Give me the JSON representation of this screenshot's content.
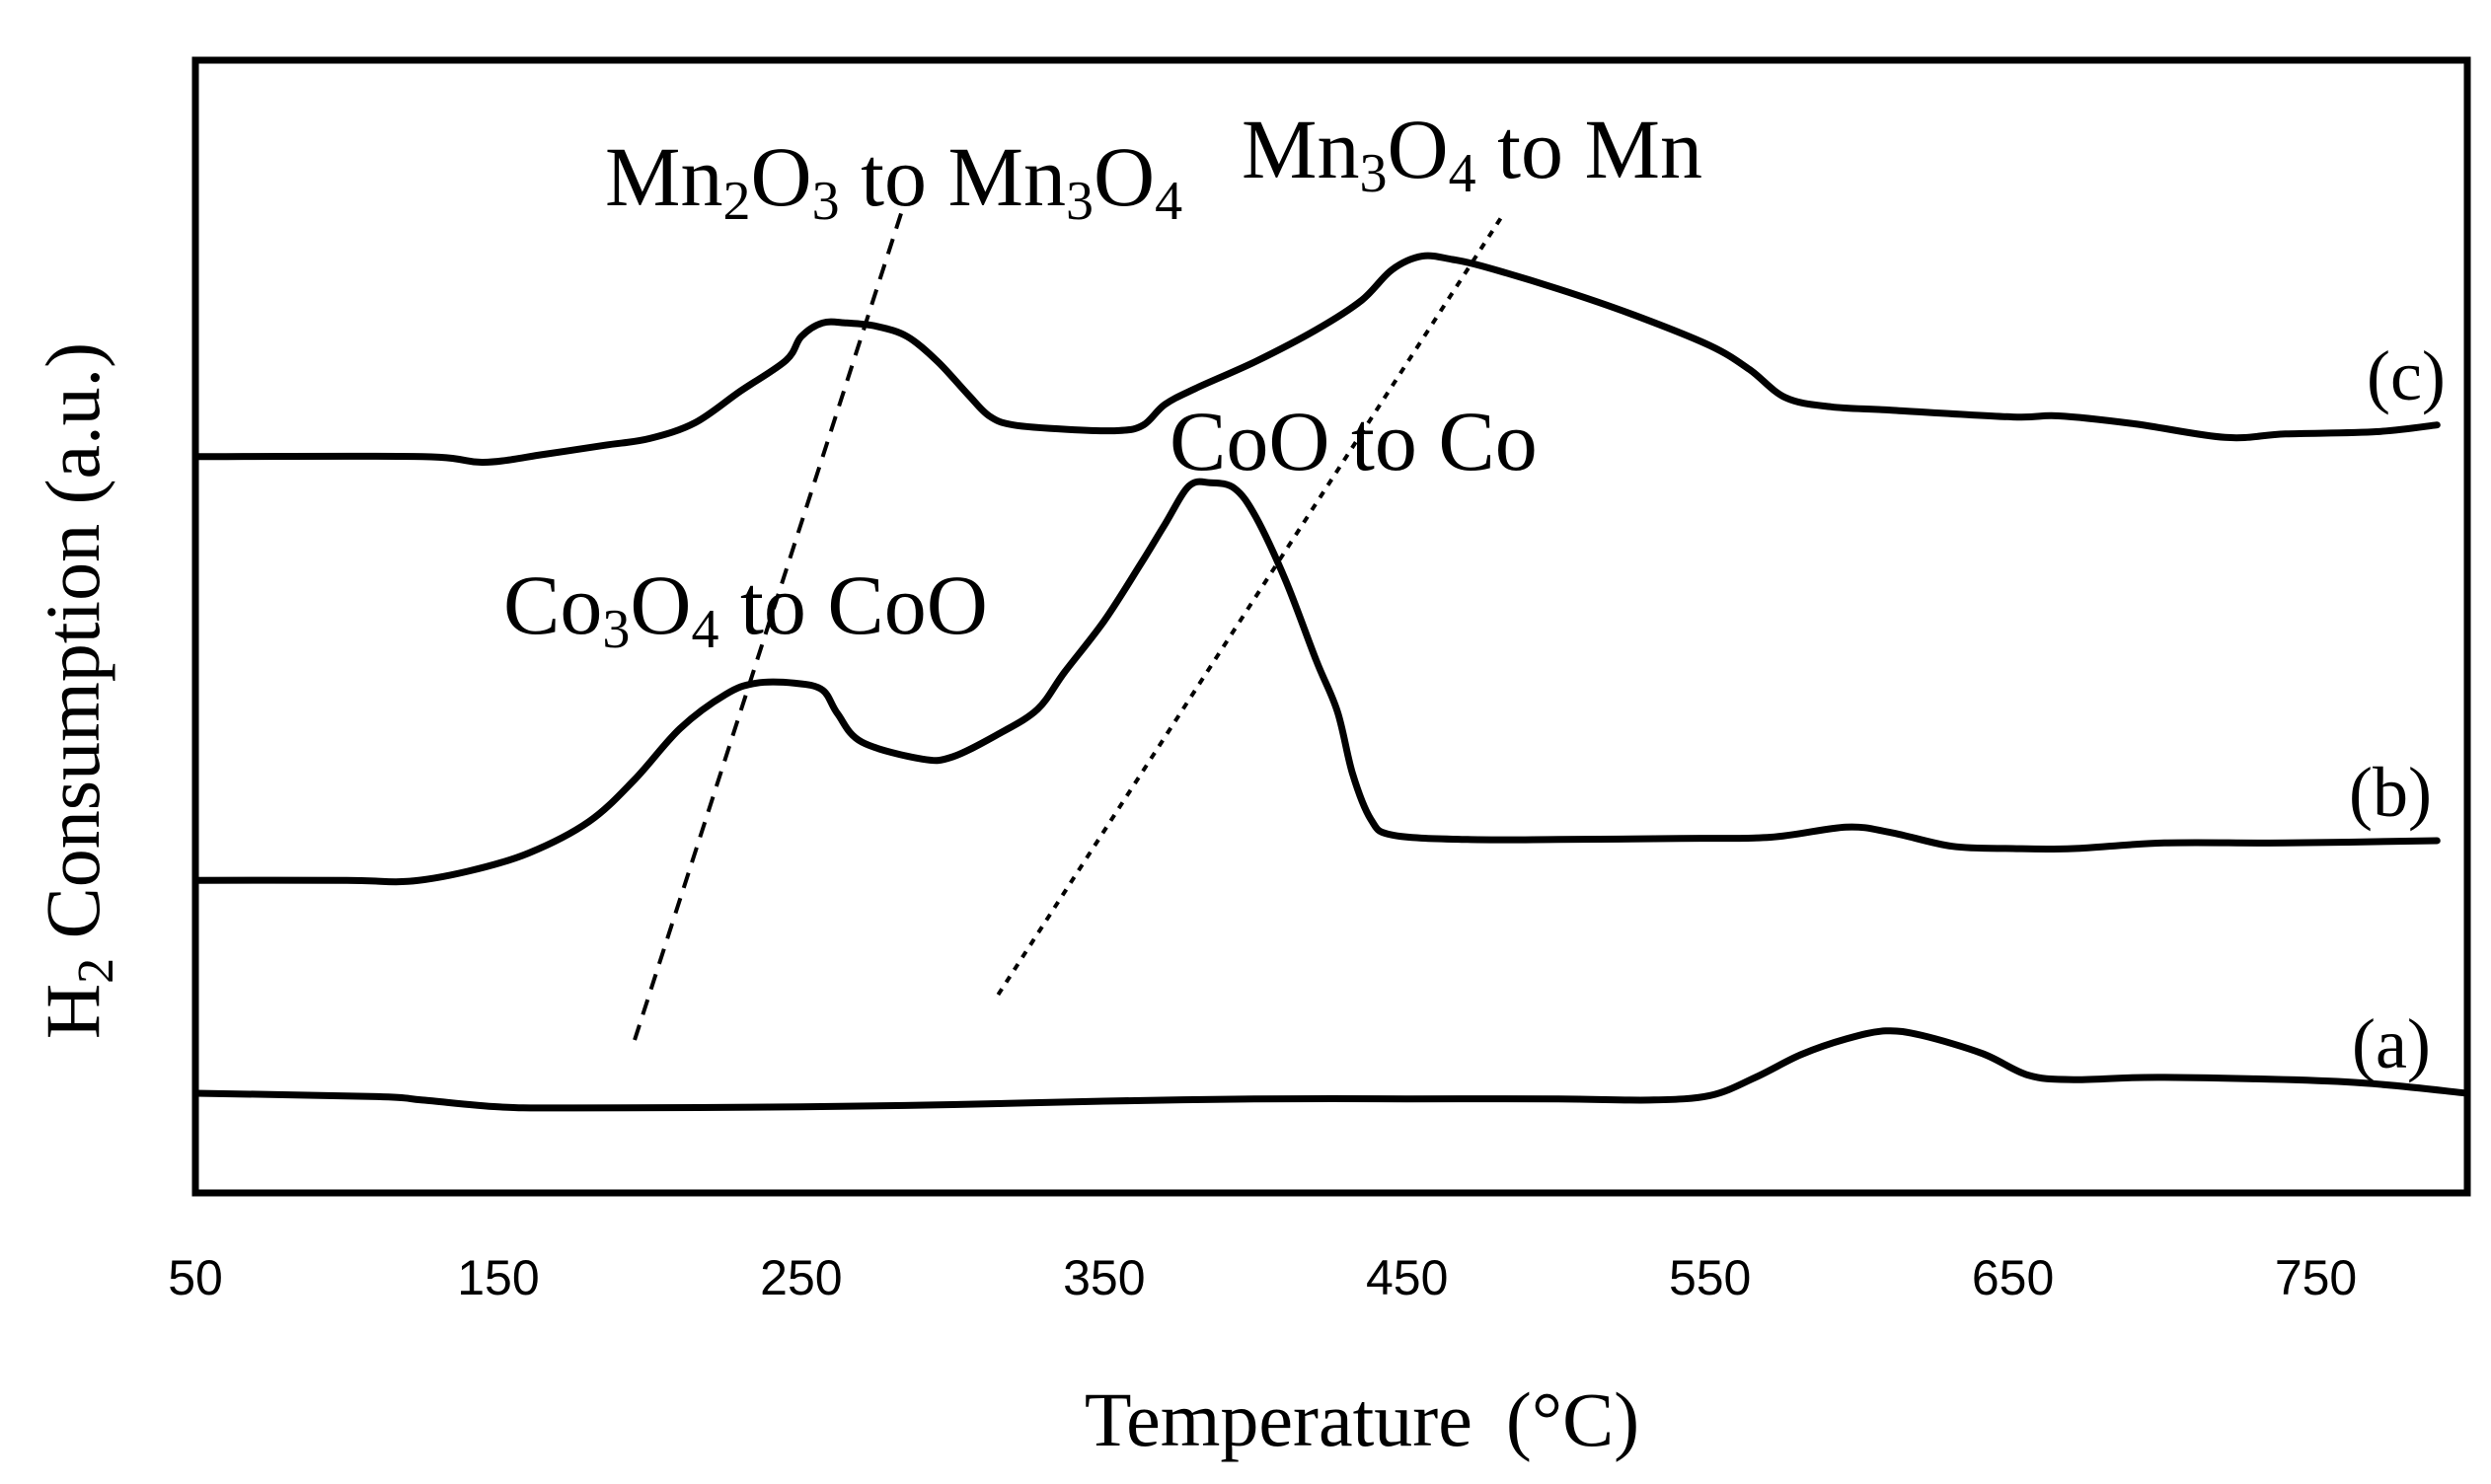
{
  "chart_data": {
    "type": "line",
    "title": "",
    "xlabel": "Temperature (°C)",
    "ylabel": "H2 Consumption (a.u.)",
    "ylabel_parts": {
      "pre": "H",
      "sub": "2",
      "post": " Consumption  (a.u.)"
    },
    "xlabel_parts": {
      "text": "Temperature",
      "unit": "(°C)"
    },
    "xlim": [
      50,
      800
    ],
    "ylim": [
      0,
      100
    ],
    "y_ticks_shown": false,
    "grid": false,
    "legend": "none",
    "x_ticks": [
      50,
      150,
      250,
      350,
      450,
      550,
      650,
      750
    ],
    "x_tick_labels": [
      "50",
      "150",
      "250",
      "350",
      "450",
      "550",
      "650",
      "750"
    ],
    "series": [
      {
        "name": "(a)",
        "label": "(a)",
        "points": [
          [
            50,
            8.8
          ],
          [
            110,
            8.5
          ],
          [
            125,
            8.2
          ],
          [
            150,
            7.6
          ],
          [
            175,
            7.5
          ],
          [
            250,
            7.6
          ],
          [
            300,
            7.8
          ],
          [
            350,
            8.1
          ],
          [
            400,
            8.3
          ],
          [
            450,
            8.3
          ],
          [
            500,
            8.3
          ],
          [
            530,
            8.2
          ],
          [
            550,
            8.6
          ],
          [
            565,
            10.2
          ],
          [
            580,
            12.2
          ],
          [
            595,
            13.6
          ],
          [
            608,
            14.3
          ],
          [
            620,
            13.9
          ],
          [
            640,
            12.3
          ],
          [
            655,
            10.4
          ],
          [
            670,
            10
          ],
          [
            700,
            10.2
          ],
          [
            760,
            9.8
          ],
          [
            800,
            8.8
          ]
        ]
      },
      {
        "name": "(b)",
        "label": "(b)",
        "points": [
          [
            50,
            27.6
          ],
          [
            100,
            27.6
          ],
          [
            120,
            27.5
          ],
          [
            140,
            28.4
          ],
          [
            160,
            30
          ],
          [
            180,
            32.8
          ],
          [
            195,
            36.5
          ],
          [
            210,
            41
          ],
          [
            225,
            44
          ],
          [
            235,
            45
          ],
          [
            248,
            45
          ],
          [
            257,
            44.4
          ],
          [
            262,
            42.3
          ],
          [
            270,
            39.8
          ],
          [
            290,
            38.3
          ],
          [
            300,
            38.5
          ],
          [
            315,
            40.5
          ],
          [
            328,
            42.7
          ],
          [
            337,
            46
          ],
          [
            350,
            50.5
          ],
          [
            362,
            55.5
          ],
          [
            370,
            59
          ],
          [
            378,
            62.4
          ],
          [
            385,
            62.7
          ],
          [
            393,
            62.2
          ],
          [
            400,
            59.7
          ],
          [
            410,
            54
          ],
          [
            420,
            47
          ],
          [
            427,
            42.5
          ],
          [
            432,
            37
          ],
          [
            438,
            33
          ],
          [
            445,
            31.6
          ],
          [
            470,
            31.2
          ],
          [
            500,
            31.2
          ],
          [
            540,
            31.3
          ],
          [
            570,
            31.4
          ],
          [
            595,
            32.3
          ],
          [
            610,
            31.8
          ],
          [
            630,
            30.6
          ],
          [
            650,
            30.4
          ],
          [
            670,
            30.4
          ],
          [
            700,
            30.9
          ],
          [
            740,
            30.9
          ],
          [
            790,
            31.1
          ]
        ]
      },
      {
        "name": "(c)",
        "label": "(c)",
        "points": [
          [
            50,
            65
          ],
          [
            125,
            65
          ],
          [
            145,
            64.5
          ],
          [
            165,
            65.2
          ],
          [
            185,
            66
          ],
          [
            200,
            66.6
          ],
          [
            215,
            68
          ],
          [
            230,
            70.8
          ],
          [
            245,
            73.5
          ],
          [
            250,
            75.6
          ],
          [
            257,
            76.8
          ],
          [
            265,
            76.8
          ],
          [
            275,
            76.5
          ],
          [
            285,
            75.6
          ],
          [
            295,
            73.4
          ],
          [
            305,
            70.5
          ],
          [
            312,
            68.6
          ],
          [
            320,
            67.8
          ],
          [
            338,
            67.4
          ],
          [
            355,
            67.3
          ],
          [
            363,
            67.8
          ],
          [
            370,
            69.6
          ],
          [
            380,
            71
          ],
          [
            400,
            73.4
          ],
          [
            420,
            76.2
          ],
          [
            435,
            78.8
          ],
          [
            445,
            81.5
          ],
          [
            455,
            82.7
          ],
          [
            465,
            82.4
          ],
          [
            475,
            81.8
          ],
          [
            500,
            79.8
          ],
          [
            525,
            77.5
          ],
          [
            550,
            74.8
          ],
          [
            563,
            72.7
          ],
          [
            575,
            70.2
          ],
          [
            590,
            69.4
          ],
          [
            610,
            69.1
          ],
          [
            650,
            68.5
          ],
          [
            665,
            68.6
          ],
          [
            690,
            67.9
          ],
          [
            720,
            66.7
          ],
          [
            740,
            67
          ],
          [
            770,
            67.2
          ],
          [
            790,
            67.8
          ]
        ]
      }
    ],
    "annotations": [
      {
        "id": "mn2o3",
        "text": "Mn2O3 to Mn3O4",
        "parts": [
          "Mn",
          "2",
          "O",
          "3",
          " to Mn",
          "3",
          "O",
          "4"
        ]
      },
      {
        "id": "mn3o4",
        "text": "Mn3O4 to Mn",
        "parts": [
          "Mn",
          "3",
          "O",
          "4",
          " to Mn"
        ]
      },
      {
        "id": "co3o4",
        "text": "Co3O4 to CoO",
        "parts": [
          "Co",
          "3",
          "O",
          "4",
          " to CoO"
        ]
      },
      {
        "id": "coo",
        "text": "CoO to Co",
        "parts": [
          "CoO to Co"
        ]
      }
    ],
    "guide_lines": [
      {
        "name": "low-temperature-peak-guide",
        "style": "dashed",
        "from": [
          195,
          13.5
        ],
        "to": [
          283,
          86.5
        ]
      },
      {
        "name": "high-temperature-peak-guide",
        "style": "dotted",
        "from": [
          315,
          17.5
        ],
        "to": [
          482,
          86.5
        ]
      }
    ]
  }
}
